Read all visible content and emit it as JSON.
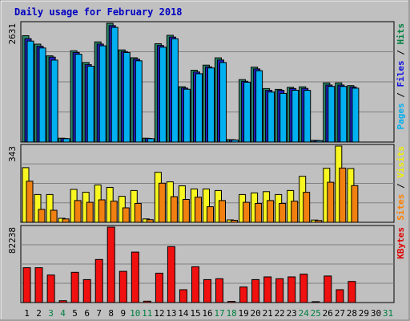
{
  "chart_data": {
    "type": "bar",
    "title": "Daily usage for February 2018",
    "days": [
      {
        "label": "1",
        "weekend": false
      },
      {
        "label": "2",
        "weekend": false
      },
      {
        "label": "3",
        "weekend": true
      },
      {
        "label": "4",
        "weekend": true
      },
      {
        "label": "5",
        "weekend": false
      },
      {
        "label": "6",
        "weekend": false
      },
      {
        "label": "7",
        "weekend": false
      },
      {
        "label": "8",
        "weekend": false
      },
      {
        "label": "9",
        "weekend": false
      },
      {
        "label": "10",
        "weekend": true
      },
      {
        "label": "11",
        "weekend": true
      },
      {
        "label": "12",
        "weekend": false
      },
      {
        "label": "13",
        "weekend": false
      },
      {
        "label": "14",
        "weekend": false
      },
      {
        "label": "15",
        "weekend": false
      },
      {
        "label": "16",
        "weekend": false
      },
      {
        "label": "17",
        "weekend": true
      },
      {
        "label": "18",
        "weekend": true
      },
      {
        "label": "19",
        "weekend": false
      },
      {
        "label": "20",
        "weekend": false
      },
      {
        "label": "21",
        "weekend": false
      },
      {
        "label": "22",
        "weekend": false
      },
      {
        "label": "23",
        "weekend": false
      },
      {
        "label": "24",
        "weekend": true
      },
      {
        "label": "25",
        "weekend": true
      },
      {
        "label": "26",
        "weekend": false
      },
      {
        "label": "27",
        "weekend": false
      },
      {
        "label": "28",
        "weekend": false
      },
      {
        "label": "29",
        "weekend": false
      },
      {
        "label": "30",
        "weekend": false
      },
      {
        "label": "31",
        "weekend": true
      }
    ],
    "panels": [
      {
        "id": "hits",
        "max_label": "2631",
        "max": 2631,
        "legend": [
          {
            "text": "Pages",
            "color": "#00b0f0"
          },
          {
            "text": "Files",
            "color": "#1010e0"
          },
          {
            "text": "Hits",
            "color": "#008040"
          }
        ],
        "series": [
          {
            "name": "Hits",
            "color": "#2a8a6c",
            "values": [
              2355,
              2169,
              1909,
              85,
              2021,
              1761,
              2218,
              2631,
              2041,
              1866,
              85,
              2178,
              2364,
              1225,
              1591,
              1703,
              1865,
              54,
              1383,
              1658,
              1184,
              1166,
              1213,
              1223,
              37,
              1311,
              1311,
              1249,
              null,
              null,
              null
            ]
          },
          {
            "name": "Files",
            "color": "#2020c0",
            "values": [
              2290,
              2121,
              1880,
              80,
              1982,
              1714,
              2170,
              2580,
              2003,
              1836,
              80,
              2139,
              2325,
              1196,
              1552,
              1665,
              1816,
              50,
              1345,
              1620,
              1145,
              1145,
              1184,
              1188,
              33,
              1262,
              1262,
              1220,
              null,
              null,
              null
            ]
          },
          {
            "name": "Pages",
            "color": "#00b0f0",
            "values": [
              2237,
              2083,
              1815,
              75,
              1945,
              1680,
              2132,
              2540,
              1983,
              1799,
              75,
              2101,
              2288,
              1170,
              1512,
              1640,
              1761,
              44,
              1325,
              1581,
              1107,
              1077,
              1146,
              1145,
              30,
              1232,
              1232,
              1192,
              null,
              null,
              null
            ]
          }
        ]
      },
      {
        "id": "visits",
        "max_label": "343",
        "max": 343,
        "legend": [
          {
            "text": "Sites",
            "color": "#ff8000"
          },
          {
            "text": "Visits",
            "color": "#f0f000"
          }
        ],
        "series": [
          {
            "name": "Visits",
            "color": "#f8f820",
            "values": [
              246,
              125,
              125,
              18,
              148,
              135,
              168,
              157,
              117,
              143,
              15,
              225,
              182,
              164,
              150,
              150,
              143,
              11,
              125,
              132,
              138,
              125,
              143,
              207,
              10,
              243,
              343,
              242,
              null,
              null,
              null
            ]
          },
          {
            "name": "Sites",
            "color": "#f08010",
            "values": [
              185,
              58,
              54,
              15,
              98,
              90,
              101,
              95,
              65,
              85,
              12,
              176,
              115,
              103,
              113,
              70,
              98,
              9,
              90,
              85,
              98,
              85,
              95,
              135,
              8,
              180,
              244,
              165,
              null,
              null,
              null
            ]
          }
        ]
      },
      {
        "id": "kbytes",
        "max_label": "82238",
        "max": 82238,
        "legend": [
          {
            "text": "KBytes",
            "color": "#e00000"
          }
        ],
        "series": [
          {
            "name": "KBytes",
            "color": "#f01010",
            "values": [
              38000,
              38000,
              30000,
              2000,
              33000,
              25000,
              47000,
              82238,
              34000,
              55000,
              1500,
              32000,
              61000,
              14000,
              39000,
              25000,
              26000,
              1200,
              17000,
              25000,
              28000,
              26000,
              28000,
              31000,
              1000,
              29000,
              14000,
              23000,
              null,
              null,
              null
            ]
          }
        ]
      }
    ]
  }
}
